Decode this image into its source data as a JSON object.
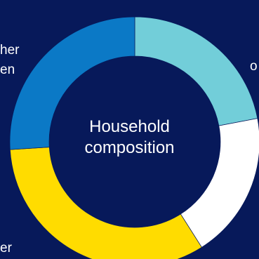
{
  "chart_data": {
    "type": "pie",
    "title": "Household composition",
    "center_title_lines": [
      "Household",
      "composition"
    ],
    "donut": true,
    "slices": [
      {
        "value": 22,
        "color": "#72ced9"
      },
      {
        "value": 19,
        "color": "#ffffff"
      },
      {
        "value": 33,
        "color": "#ffdc00"
      },
      {
        "value": 26,
        "color": "#0b79c6"
      }
    ],
    "visible_label_fragments": {
      "top_left_line1": "her",
      "top_left_line2": "en",
      "right_top": "o",
      "bottom_left": "er"
    },
    "colors": {
      "background": "#07195a"
    }
  }
}
